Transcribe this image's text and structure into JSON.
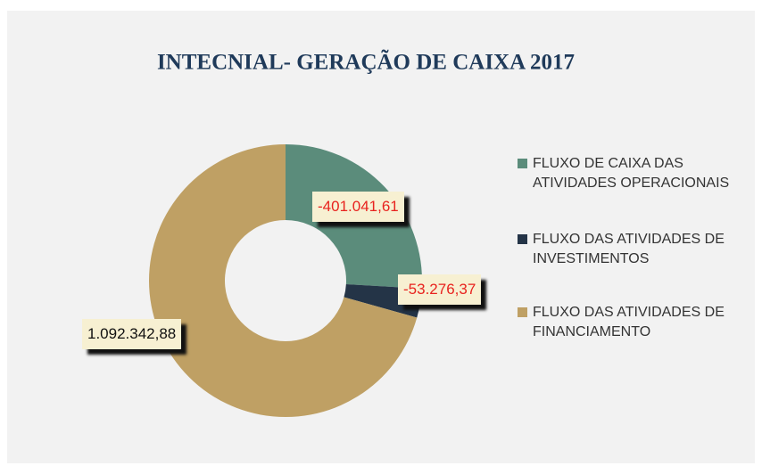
{
  "chart_data": {
    "type": "donut",
    "title": "INTECNIAL- GERAÇÃO DE CAIXA 2017",
    "categories": [
      "FLUXO DE CAIXA DAS ATIVIDADES OPERACIONAIS",
      "FLUXO DAS ATIVIDADES DE INVESTIMENTOS",
      "FLUXO DAS ATIVIDADES DE FINANCIAMENTO"
    ],
    "values": [
      -401041.61,
      -53276.37,
      1092342.88
    ],
    "value_labels": [
      "-401.041,61",
      "-53.276,37",
      "1.092.342,88"
    ],
    "colors": [
      "#5b8c7b",
      "#243447",
      "#bfa064"
    ],
    "legend": "right"
  }
}
